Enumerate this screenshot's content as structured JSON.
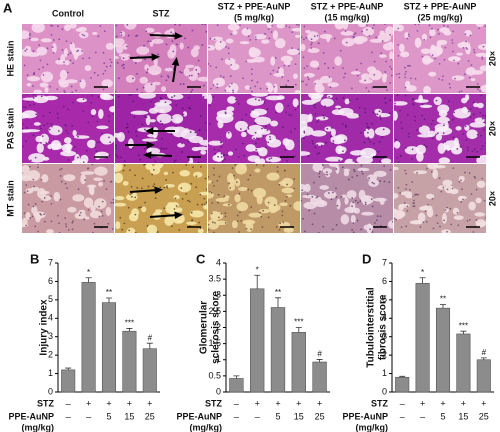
{
  "panel_a": {
    "label": "A",
    "columns": [
      [
        "Control"
      ],
      [
        "STZ"
      ],
      [
        "STZ + PPE-AuNP",
        "(5 mg/kg)"
      ],
      [
        "STZ + PPE-AuNP",
        "(15 mg/kg)"
      ],
      [
        "STZ + PPE-AuNP",
        "(25 mg/kg)"
      ]
    ],
    "rows": [
      "HE stain",
      "PAS stain",
      "MT stain"
    ],
    "magnification": "20×"
  },
  "chart_data": [
    {
      "type": "bar",
      "panel_label": "B",
      "ylabel": [
        "Injury index"
      ],
      "color": "#8c8c8c",
      "categories": [
        null,
        null,
        null,
        null,
        null
      ],
      "values": [
        1.2,
        5.95,
        4.85,
        3.3,
        2.35
      ],
      "errors": [
        0.1,
        0.25,
        0.25,
        0.15,
        0.3
      ],
      "annotations": [
        null,
        "*",
        "**",
        "***",
        "#"
      ],
      "ylim": [
        0,
        7
      ],
      "yticks": [
        0,
        1,
        2,
        3,
        4,
        5,
        6,
        7
      ],
      "x_table": [
        {
          "label": [
            "STZ"
          ],
          "values": [
            "–",
            "+",
            "+",
            "+",
            "+"
          ]
        },
        {
          "label": [
            "PPE-AuNP",
            "(mg/kg)"
          ],
          "values": [
            "–",
            "–",
            5,
            15,
            25
          ]
        }
      ]
    },
    {
      "type": "bar",
      "panel_label": "C",
      "ylabel": [
        "Glomerular",
        "sclerosis score"
      ],
      "color": "#8c8c8c",
      "categories": [
        null,
        null,
        null,
        null,
        null
      ],
      "values": [
        0.42,
        3.2,
        2.62,
        1.85,
        0.93
      ],
      "errors": [
        0.08,
        0.42,
        0.3,
        0.15,
        0.08
      ],
      "annotations": [
        null,
        "*",
        "**",
        "***",
        "#"
      ],
      "ylim": [
        0,
        4
      ],
      "yticks": [
        0,
        0.5,
        1,
        1.5,
        2,
        2.5,
        3,
        3.5,
        4
      ],
      "x_table": [
        {
          "label": [
            "STZ"
          ],
          "values": [
            "–",
            "+",
            "+",
            "+",
            "+"
          ]
        },
        {
          "label": [
            "PPE-AuNP",
            "(mg/kg)"
          ],
          "values": [
            "–",
            "–",
            5,
            15,
            25
          ]
        }
      ]
    },
    {
      "type": "bar",
      "panel_label": "D",
      "ylabel": [
        "Tubulointerstitial",
        "fibrosis score"
      ],
      "color": "#8c8c8c",
      "categories": [
        null,
        null,
        null,
        null,
        null
      ],
      "values": [
        0.8,
        5.9,
        4.55,
        3.15,
        1.75
      ],
      "errors": [
        0.05,
        0.3,
        0.2,
        0.15,
        0.1
      ],
      "annotations": [
        null,
        "*",
        "**",
        "***",
        "#"
      ],
      "ylim": [
        0,
        7
      ],
      "yticks": [
        0,
        1,
        2,
        3,
        4,
        5,
        6,
        7
      ],
      "x_table": [
        {
          "label": [
            "STZ"
          ],
          "values": [
            "–",
            "+",
            "+",
            "+",
            "+"
          ]
        },
        {
          "label": [
            "PPE-AuNP",
            "(mg/kg)"
          ],
          "values": [
            "–",
            "–",
            5,
            15,
            25
          ]
        }
      ]
    }
  ]
}
